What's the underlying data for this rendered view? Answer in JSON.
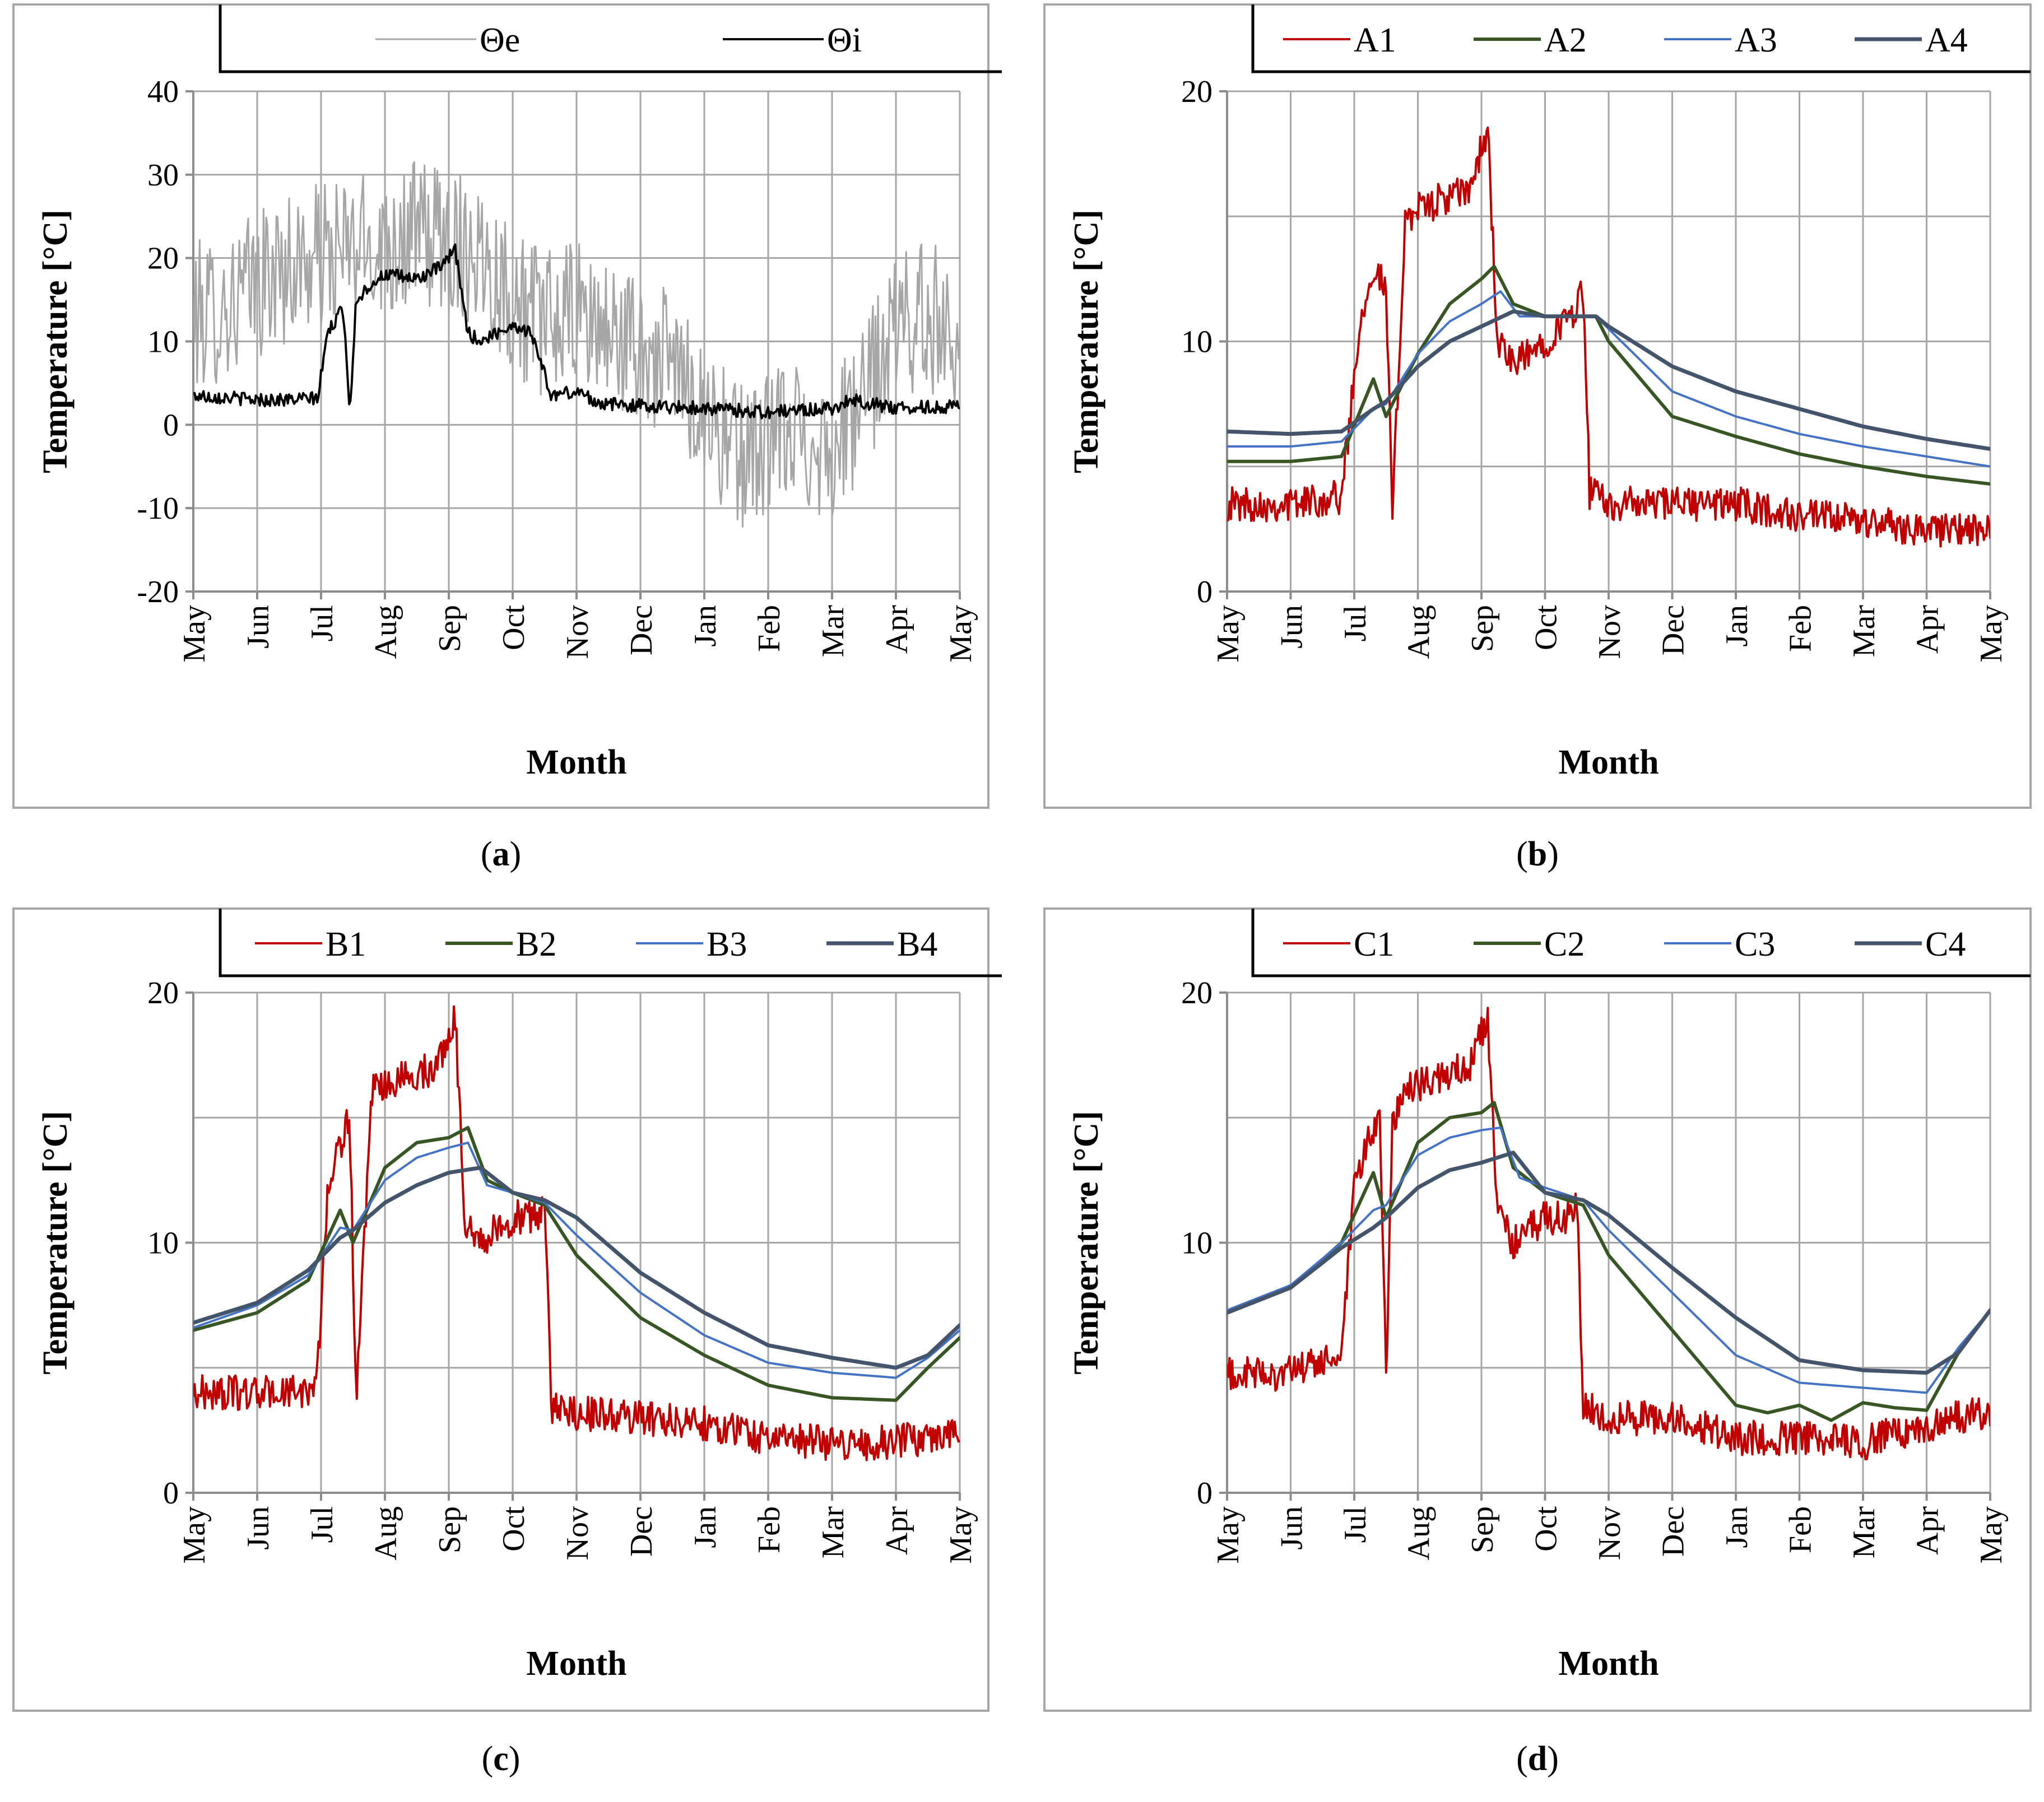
{
  "colors": {
    "red": "#c00000",
    "green": "#375623",
    "light_blue": "#4472c4",
    "dark_blue": "#44546a",
    "grey": "#a6a6a6",
    "black": "#000000"
  },
  "chart_data": [
    {
      "id": "a",
      "type": "line",
      "caption_letter": "a",
      "xlabel": "Month",
      "ylabel": "Temperature [°C]",
      "ylim": [
        -20,
        40
      ],
      "yticks": [
        -20,
        -10,
        0,
        10,
        20,
        30,
        40
      ],
      "grid": true,
      "legend_position": "top-right",
      "categories": [
        "May",
        "Jun",
        "Jul",
        "Aug",
        "Sep",
        "Oct",
        "Nov",
        "Dec",
        "Jan",
        "Feb",
        "Mar",
        "Apr",
        "May"
      ],
      "series": [
        {
          "name": "Θe",
          "color": "#a6a6a6",
          "width": 3,
          "noise": 9,
          "x": [
            0,
            0.5,
            1,
            1.5,
            2,
            2.5,
            3,
            3.5,
            4,
            4.5,
            5,
            5.5,
            6,
            6.5,
            7,
            7.5,
            8,
            8.5,
            9,
            9.5,
            10,
            10.5,
            11,
            11.5,
            12
          ],
          "values": [
            13,
            14,
            17,
            19,
            20,
            21,
            22,
            23,
            22,
            21,
            15,
            12,
            13,
            11,
            9,
            7,
            2,
            -4,
            -2,
            -1,
            -3,
            3,
            12,
            13,
            11
          ]
        },
        {
          "name": "Θi",
          "color": "#000000",
          "width": 4,
          "noise": 0.8,
          "x": [
            0,
            0.5,
            1,
            1.5,
            1.95,
            2.1,
            2.35,
            2.45,
            2.55,
            2.8,
            3,
            3.5,
            3.9,
            4.1,
            4.3,
            4.5,
            5,
            5.3,
            5.6,
            6,
            6.4,
            7,
            8,
            9,
            10,
            10.3,
            11,
            12
          ],
          "values": [
            3.5,
            3.3,
            3,
            3,
            3.2,
            11,
            14,
            1.5,
            15,
            17,
            18,
            17.5,
            19,
            21,
            11,
            10,
            12,
            11,
            3.5,
            4,
            2.5,
            2.3,
            2,
            1.5,
            2,
            3,
            2,
            2.2
          ]
        }
      ]
    },
    {
      "id": "b",
      "type": "line",
      "caption_letter": "b",
      "xlabel": "Month",
      "ylabel": "Temperature [°C]",
      "ylim": [
        0,
        20
      ],
      "yticks": [
        0,
        10,
        20
      ],
      "grid": true,
      "legend_position": "top-right",
      "categories": [
        "May",
        "Jun",
        "Jul",
        "Aug",
        "Sep",
        "Oct",
        "Nov",
        "Dec",
        "Jan",
        "Feb",
        "Mar",
        "Apr",
        "May"
      ],
      "series": [
        {
          "name": "A1",
          "color": "#c00000",
          "width": 4,
          "noise": 0.7,
          "x": [
            0,
            1,
            1.8,
            2.1,
            2.3,
            2.5,
            2.6,
            2.8,
            3.2,
            3.8,
            4.1,
            4.25,
            4.5,
            5,
            5.4,
            5.6,
            5.7,
            6,
            7,
            8,
            9,
            10,
            11,
            12
          ],
          "values": [
            3.5,
            3.5,
            3.8,
            11,
            13,
            12,
            3,
            15,
            15.5,
            16,
            18.5,
            10,
            9,
            10,
            11,
            12,
            4,
            3.5,
            3.5,
            3.5,
            3,
            2.8,
            2.5,
            2.4
          ]
        },
        {
          "name": "A2",
          "color": "#375623",
          "width": 6,
          "noise": 0,
          "x": [
            0,
            1,
            1.8,
            2.3,
            2.5,
            3,
            3.5,
            4,
            4.2,
            4.5,
            5,
            5.8,
            6,
            7,
            8,
            9,
            10,
            11,
            12
          ],
          "values": [
            5.2,
            5.2,
            5.4,
            8.5,
            7,
            9.5,
            11.5,
            12.5,
            13,
            11.5,
            11,
            11,
            10,
            7,
            6.2,
            5.5,
            5,
            4.6,
            4.3
          ]
        },
        {
          "name": "A3",
          "color": "#4472c4",
          "width": 4,
          "noise": 0,
          "x": [
            0,
            1,
            1.8,
            2.3,
            2.5,
            3,
            3.5,
            4,
            4.3,
            4.6,
            5,
            5.8,
            6,
            7,
            8,
            9,
            10,
            11,
            12
          ],
          "values": [
            5.8,
            5.8,
            6.0,
            7.3,
            7.5,
            9.5,
            10.8,
            11.5,
            12,
            11,
            11,
            11,
            10.5,
            8,
            7,
            6.3,
            5.8,
            5.4,
            5
          ]
        },
        {
          "name": "A4",
          "color": "#44546a",
          "width": 7,
          "noise": 0,
          "x": [
            0,
            1,
            1.8,
            2.3,
            2.5,
            3,
            3.5,
            4,
            4.5,
            5,
            5.8,
            6,
            7,
            8,
            9,
            10,
            11,
            12
          ],
          "values": [
            6.4,
            6.3,
            6.4,
            7.3,
            7.6,
            9,
            10,
            10.6,
            11.2,
            11,
            11,
            10.6,
            9,
            8,
            7.3,
            6.6,
            6.1,
            5.7
          ]
        }
      ]
    },
    {
      "id": "c",
      "type": "line",
      "caption_letter": "c",
      "xlabel": "Month",
      "ylabel": "Temperature [°C]",
      "ylim": [
        0,
        20
      ],
      "yticks": [
        0,
        10,
        20
      ],
      "grid": true,
      "legend_position": "top-right",
      "categories": [
        "May",
        "Jun",
        "Jul",
        "Aug",
        "Sep",
        "Oct",
        "Nov",
        "Dec",
        "Jan",
        "Feb",
        "Mar",
        "Apr",
        "May"
      ],
      "series": [
        {
          "name": "B1",
          "color": "#c00000",
          "width": 4,
          "noise": 0.7,
          "x": [
            0,
            1,
            1.8,
            1.95,
            2.1,
            2.3,
            2.45,
            2.55,
            2.8,
            3.2,
            3.8,
            4.1,
            4.25,
            4.5,
            5,
            5.4,
            5.5,
            5.6,
            6,
            7,
            8,
            9,
            10,
            11,
            12
          ],
          "values": [
            4,
            4,
            4,
            5,
            12,
            14,
            15,
            3.5,
            16,
            16.5,
            17,
            19,
            11,
            10,
            11,
            11,
            12,
            3.5,
            3.2,
            3,
            2.8,
            2.2,
            2,
            2,
            2.5
          ]
        },
        {
          "name": "B2",
          "color": "#375623",
          "width": 6,
          "noise": 0,
          "x": [
            0,
            1,
            1.8,
            2.3,
            2.5,
            3,
            3.5,
            4,
            4.3,
            4.6,
            5,
            5.5,
            6,
            7,
            8,
            9,
            10,
            11,
            11.5,
            12
          ],
          "values": [
            6.5,
            7.2,
            8.5,
            11.3,
            10,
            13,
            14,
            14.2,
            14.6,
            12.5,
            12,
            11.5,
            9.5,
            7,
            5.5,
            4.3,
            3.8,
            3.7,
            5,
            6.2
          ]
        },
        {
          "name": "B3",
          "color": "#4472c4",
          "width": 4,
          "noise": 0,
          "x": [
            0,
            1,
            1.8,
            2.3,
            2.5,
            3,
            3.5,
            4,
            4.3,
            4.6,
            5,
            5.5,
            6,
            7,
            8,
            9,
            10,
            11,
            11.5,
            12
          ],
          "values": [
            6.6,
            7.5,
            8.7,
            10.6,
            10.5,
            12.5,
            13.4,
            13.8,
            14,
            12.3,
            12,
            11.6,
            10.3,
            8,
            6.3,
            5.2,
            4.8,
            4.6,
            5.4,
            6.5
          ]
        },
        {
          "name": "B4",
          "color": "#44546a",
          "width": 7,
          "noise": 0,
          "x": [
            0,
            1,
            1.8,
            2.3,
            2.5,
            3,
            3.5,
            4,
            4.5,
            5,
            5.5,
            6,
            7,
            8,
            9,
            10,
            11,
            11.5,
            12
          ],
          "values": [
            6.8,
            7.6,
            8.9,
            10.2,
            10.5,
            11.6,
            12.3,
            12.8,
            13,
            12,
            11.7,
            11,
            8.8,
            7.2,
            5.9,
            5.4,
            5,
            5.5,
            6.7
          ]
        }
      ]
    },
    {
      "id": "d",
      "type": "line",
      "caption_letter": "d",
      "xlabel": "Month",
      "ylabel": "Temperature [°C]",
      "ylim": [
        0,
        20
      ],
      "yticks": [
        0,
        10,
        20
      ],
      "grid": true,
      "legend_position": "top-right",
      "categories": [
        "May",
        "Jun",
        "Jul",
        "Aug",
        "Sep",
        "Oct",
        "Nov",
        "Dec",
        "Jan",
        "Feb",
        "Mar",
        "Apr",
        "May"
      ],
      "series": [
        {
          "name": "C1",
          "color": "#c00000",
          "width": 4,
          "noise": 0.7,
          "x": [
            0,
            1,
            1.8,
            2.0,
            2.2,
            2.4,
            2.5,
            2.6,
            2.8,
            3.2,
            3.8,
            4.1,
            4.25,
            4.5,
            5,
            5.4,
            5.5,
            5.6,
            6,
            7,
            8,
            9,
            10,
            11,
            12
          ],
          "values": [
            4.7,
            4.8,
            5.5,
            12,
            14,
            15,
            4.5,
            15,
            16,
            16.5,
            17,
            19,
            11,
            10,
            11,
            11,
            12,
            3.4,
            3,
            3,
            2.2,
            2.2,
            2,
            2.7,
            3.3
          ]
        },
        {
          "name": "C2",
          "color": "#375623",
          "width": 6,
          "noise": 0,
          "x": [
            0,
            1,
            1.8,
            2.3,
            2.5,
            3,
            3.5,
            4,
            4.2,
            4.5,
            5,
            5.6,
            6,
            7,
            8,
            8.5,
            9,
            9.5,
            10,
            10.5,
            11,
            11.5,
            12
          ],
          "values": [
            7.2,
            8.2,
            10,
            12.8,
            11,
            14,
            15,
            15.2,
            15.6,
            13,
            12,
            11.5,
            9.5,
            6.5,
            3.5,
            3.2,
            3.5,
            2.9,
            3.6,
            3.4,
            3.3,
            5.6,
            7.3
          ]
        },
        {
          "name": "C3",
          "color": "#4472c4",
          "width": 4,
          "noise": 0,
          "x": [
            0,
            1,
            1.8,
            2.3,
            2.5,
            3,
            3.5,
            4,
            4.3,
            4.6,
            5,
            5.6,
            6,
            7,
            8,
            9,
            10,
            11,
            11.5,
            12
          ],
          "values": [
            7.3,
            8.3,
            10,
            11.3,
            11.5,
            13.5,
            14.2,
            14.5,
            14.6,
            12.6,
            12.2,
            11.7,
            10.5,
            8,
            5.5,
            4.4,
            4.2,
            4,
            5.8,
            7.3
          ]
        },
        {
          "name": "C4",
          "color": "#44546a",
          "width": 7,
          "noise": 0,
          "x": [
            0,
            1,
            1.8,
            2.3,
            2.5,
            3,
            3.5,
            4,
            4.5,
            5,
            5.6,
            6,
            7,
            8,
            9,
            10,
            11,
            11.5,
            12
          ],
          "values": [
            7.2,
            8.2,
            9.8,
            10.6,
            11,
            12.2,
            12.9,
            13.2,
            13.6,
            12,
            11.7,
            11.1,
            9,
            7,
            5.3,
            4.9,
            4.8,
            5.6,
            7.3
          ]
        }
      ]
    }
  ]
}
